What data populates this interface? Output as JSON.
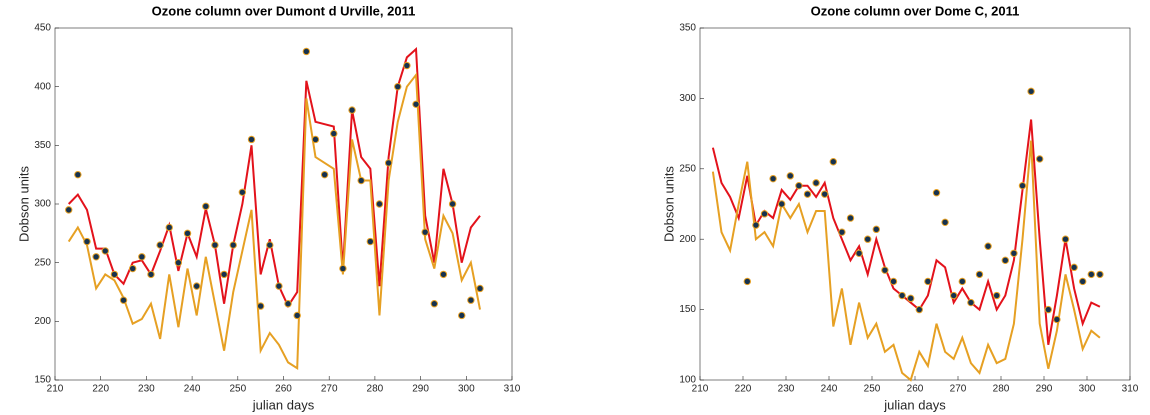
{
  "chart_data": [
    {
      "type": "line",
      "title": "Ozone column over Dumont d Urville, 2011",
      "x_label": "julian days",
      "y_label": "Dobson units",
      "xlim": [
        210,
        310
      ],
      "xticks": [
        210,
        220,
        230,
        240,
        250,
        260,
        270,
        280,
        290,
        300,
        310
      ],
      "ylim": [
        150,
        450
      ],
      "yticks": [
        150,
        200,
        250,
        300,
        350,
        400,
        450
      ],
      "x": [
        213,
        215,
        217,
        219,
        221,
        223,
        225,
        227,
        229,
        231,
        233,
        235,
        237,
        239,
        241,
        243,
        245,
        247,
        249,
        251,
        253,
        255,
        257,
        259,
        261,
        263,
        265,
        267,
        269,
        271,
        273,
        275,
        277,
        279,
        281,
        283,
        285,
        287,
        289,
        291,
        293,
        295,
        297,
        299,
        301,
        303
      ],
      "series": [
        {
          "type": "line",
          "color": "#e3121b",
          "values": [
            300,
            308,
            295,
            262,
            262,
            240,
            232,
            250,
            252,
            240,
            260,
            282,
            243,
            275,
            255,
            296,
            265,
            215,
            265,
            300,
            350,
            240,
            270,
            230,
            213,
            225,
            405,
            370,
            368,
            366,
            245,
            380,
            340,
            330,
            230,
            340,
            400,
            425,
            432,
            290,
            250,
            330,
            300,
            250,
            280,
            290
          ]
        },
        {
          "type": "line",
          "color": "#e6a023",
          "values": [
            268,
            280,
            265,
            228,
            240,
            235,
            220,
            198,
            202,
            215,
            185,
            240,
            195,
            245,
            205,
            255,
            215,
            175,
            225,
            260,
            295,
            175,
            190,
            180,
            165,
            160,
            390,
            340,
            335,
            330,
            240,
            355,
            320,
            320,
            205,
            320,
            370,
            400,
            410,
            270,
            245,
            290,
            275,
            235,
            250,
            210
          ]
        },
        {
          "type": "scatter",
          "color": "#16324f",
          "edge": "#e6a023",
          "values": [
            295,
            325,
            268,
            255,
            260,
            240,
            218,
            245,
            255,
            240,
            265,
            280,
            250,
            275,
            230,
            298,
            265,
            240,
            265,
            310,
            355,
            213,
            265,
            230,
            215,
            205,
            430,
            355,
            325,
            360,
            245,
            380,
            320,
            268,
            300,
            335,
            400,
            418,
            385,
            276,
            215,
            240,
            300,
            205,
            218,
            228
          ]
        }
      ]
    },
    {
      "type": "line",
      "title": "Ozone column over Dome C, 2011",
      "x_label": "julian days",
      "y_label": "Dobson units",
      "xlim": [
        210,
        310
      ],
      "xticks": [
        210,
        220,
        230,
        240,
        250,
        260,
        270,
        280,
        290,
        300,
        310
      ],
      "ylim": [
        100,
        350
      ],
      "yticks": [
        100,
        150,
        200,
        250,
        300,
        350
      ],
      "x": [
        213,
        215,
        217,
        219,
        221,
        223,
        225,
        227,
        229,
        231,
        233,
        235,
        237,
        239,
        241,
        243,
        245,
        247,
        249,
        251,
        253,
        255,
        257,
        259,
        261,
        263,
        265,
        267,
        269,
        271,
        273,
        275,
        277,
        279,
        281,
        283,
        285,
        287,
        289,
        291,
        293,
        295,
        297,
        299,
        301,
        303
      ],
      "series": [
        {
          "type": "line",
          "color": "#e3121b",
          "values": [
            265,
            240,
            230,
            215,
            245,
            210,
            220,
            215,
            235,
            228,
            238,
            238,
            230,
            240,
            215,
            200,
            185,
            195,
            175,
            200,
            180,
            165,
            160,
            155,
            150,
            160,
            185,
            180,
            155,
            165,
            155,
            150,
            170,
            150,
            160,
            185,
            235,
            285,
            200,
            125,
            160,
            200,
            165,
            140,
            155,
            152
          ]
        },
        {
          "type": "line",
          "color": "#e6a023",
          "values": [
            248,
            205,
            192,
            225,
            255,
            200,
            205,
            195,
            225,
            215,
            225,
            205,
            220,
            220,
            138,
            165,
            125,
            155,
            130,
            140,
            120,
            125,
            105,
            100,
            120,
            110,
            140,
            120,
            115,
            130,
            112,
            105,
            125,
            112,
            115,
            140,
            200,
            270,
            140,
            108,
            135,
            175,
            150,
            122,
            135,
            130
          ]
        },
        {
          "type": "scatter",
          "color": "#16324f",
          "edge": "#e6a023",
          "values": [
            null,
            null,
            null,
            null,
            170,
            210,
            218,
            243,
            225,
            245,
            238,
            232,
            240,
            232,
            255,
            205,
            215,
            190,
            200,
            207,
            178,
            170,
            160,
            158,
            150,
            170,
            233,
            212,
            160,
            170,
            155,
            175,
            195,
            160,
            185,
            190,
            238,
            305,
            257,
            150,
            143,
            200,
            180,
            170,
            175,
            175
          ]
        }
      ]
    }
  ]
}
